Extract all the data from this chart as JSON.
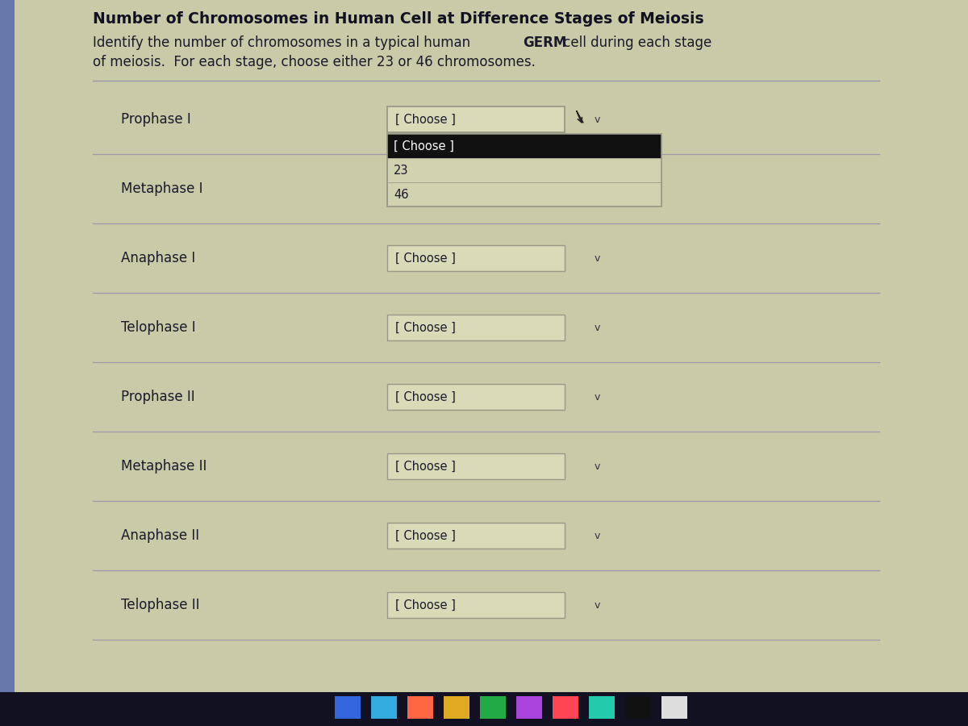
{
  "title": "Number of Chromosomes in Human Cell at Difference Stages of Meiosis",
  "subtitle_pre_germ": "Identify the number of chromosomes in a typical human ",
  "subtitle_germ": "GERM",
  "subtitle_post_germ": " cell during each stage",
  "subtitle_line2": "of meiosis.  For each stage, choose either 23 or 46 chromosomes.",
  "stages": [
    "Prophase I",
    "Metaphase I",
    "Anaphase I",
    "Telophase I",
    "Prophase II",
    "Metaphase II",
    "Anaphase II",
    "Telophase II"
  ],
  "dropdown_text": "[ Choose ]",
  "dropdown_open_items": [
    "[ Choose ]",
    "23",
    "46"
  ],
  "bg_color": "#b8bca0",
  "content_bg": "#c8caa8",
  "stripe_bg": "#d0d2b0",
  "dropdown_bg": "#d8dab8",
  "dropdown_border": "#999988",
  "dropdown_open_header_bg": "#111111",
  "dropdown_open_bg": "#d0d2b0",
  "title_color": "#111122",
  "text_color": "#1a1a2a",
  "separator_color": "#9999aa",
  "left_strip_color": "#6677aa",
  "taskbar_color": "#111122",
  "taskbar_icon_bg": "#2233aa",
  "figsize": [
    12,
    9
  ],
  "dpi": 100
}
